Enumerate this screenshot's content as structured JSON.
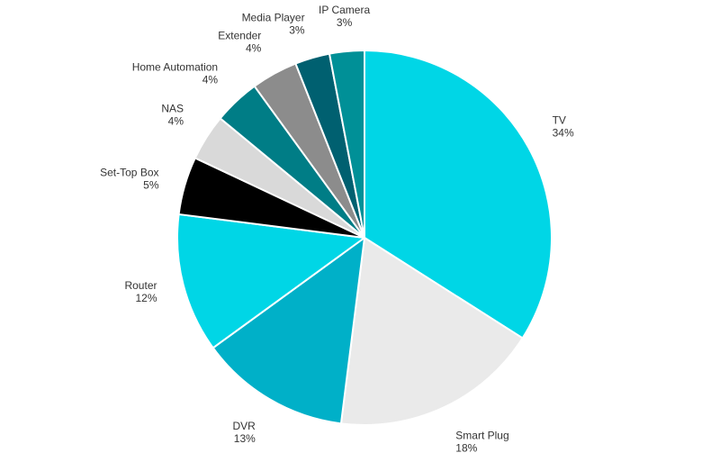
{
  "chart_data": {
    "type": "pie",
    "slices": [
      {
        "label": "TV",
        "value": 34,
        "percent_label": "34%",
        "color": "#00d6e6"
      },
      {
        "label": "Smart Plug",
        "value": 18,
        "percent_label": "18%",
        "color": "#eaeaea"
      },
      {
        "label": "DVR",
        "value": 13,
        "percent_label": "13%",
        "color": "#00b0c8"
      },
      {
        "label": "Router",
        "value": 12,
        "percent_label": "12%",
        "color": "#00d6e6"
      },
      {
        "label": "Set-Top Box",
        "value": 5,
        "percent_label": "5%",
        "color": "#000000"
      },
      {
        "label": "NAS",
        "value": 4,
        "percent_label": "4%",
        "color": "#d9d9d9"
      },
      {
        "label": "Home Automation",
        "value": 4,
        "percent_label": "4%",
        "color": "#007d86"
      },
      {
        "label": "Extender",
        "value": 4,
        "percent_label": "4%",
        "color": "#8c8c8c"
      },
      {
        "label": "Media Player",
        "value": 3,
        "percent_label": "3%",
        "color": "#006070"
      },
      {
        "label": "IP Camera",
        "value": 3,
        "percent_label": "3%",
        "color": "#009097"
      }
    ],
    "start_angle_deg": 0,
    "direction": "clockwise",
    "slice_border_color": "#ffffff",
    "legend": "none"
  }
}
